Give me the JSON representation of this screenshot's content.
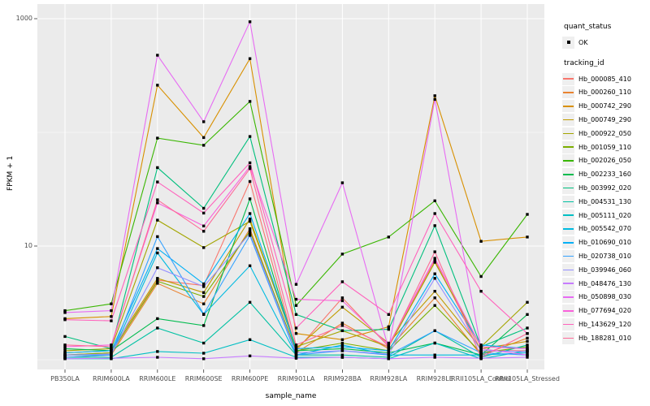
{
  "chart_data": {
    "type": "line",
    "title": "",
    "xlabel": "sample_name",
    "ylabel": "FPKM + 1",
    "y_scale": "log10",
    "y_ticks": [
      {
        "label": "1000",
        "value": 1000
      },
      {
        "label": "10",
        "value": 10
      }
    ],
    "y_minor_values": [
      1,
      100
    ],
    "panel_bg": "#ebebeb",
    "grid_color": "#ffffff",
    "point_color": "#000000",
    "categories": [
      "PB350LA",
      "RRIM600LA",
      "RRIM600LE",
      "RRIM600SE",
      "RRIM600PE",
      "RRIM901LA",
      "RRIM928BA",
      "RRIM928LA",
      "RRIM928LE",
      "RRII105LA_Control",
      "RRII105LA_Stressed"
    ],
    "series": [
      {
        "name": "Hb_000085_410",
        "color": "#F8766D",
        "values": [
          1.1,
          1.15,
          5.0,
          4.5,
          37,
          1.2,
          3.5,
          1.3,
          7.5,
          1.2,
          1.2
        ]
      },
      {
        "name": "Hb_000260_110",
        "color": "#EA8331",
        "values": [
          1.05,
          1.1,
          4.7,
          3.1,
          14.2,
          1.15,
          2.1,
          1.25,
          3.5,
          1.1,
          1.55
        ]
      },
      {
        "name": "Hb_000742_290",
        "color": "#D89000",
        "values": [
          2.3,
          2.4,
          260,
          90,
          445,
          1.7,
          1.5,
          1.95,
          210,
          11.0,
          12.0
        ]
      },
      {
        "name": "Hb_000749_290",
        "color": "#C09B00",
        "values": [
          1.15,
          1.2,
          5.2,
          3.9,
          17.3,
          1.25,
          2.9,
          1.4,
          4.0,
          1.25,
          1.45
        ]
      },
      {
        "name": "Hb_000922_050",
        "color": "#A3A500",
        "values": [
          1.2,
          1.25,
          16.9,
          9.7,
          16.5,
          1.3,
          1.8,
          1.3,
          7.2,
          1.3,
          3.2
        ]
      },
      {
        "name": "Hb_001059_110",
        "color": "#7CAE00",
        "values": [
          1.1,
          1.15,
          4.9,
          3.6,
          13.5,
          1.2,
          1.4,
          1.2,
          3.0,
          1.15,
          1.3
        ]
      },
      {
        "name": "Hb_002026_050",
        "color": "#39B600",
        "values": [
          2.7,
          3.1,
          89,
          77,
          187,
          3.0,
          8.5,
          12.0,
          25,
          5.4,
          19.0
        ]
      },
      {
        "name": "Hb_002233_160",
        "color": "#00BB4E",
        "values": [
          1.25,
          1.2,
          2.3,
          2.0,
          26,
          1.2,
          1.25,
          1.15,
          1.4,
          1.1,
          2.5
        ]
      },
      {
        "name": "Hb_003992_020",
        "color": "#00BF7D",
        "values": [
          1.6,
          1.25,
          49,
          21.5,
          92,
          2.5,
          1.8,
          1.85,
          15.1,
          1.3,
          1.9
        ]
      },
      {
        "name": "Hb_004531_130",
        "color": "#00C1A3",
        "values": [
          1.05,
          1.05,
          1.9,
          1.4,
          3.2,
          1.1,
          1.1,
          1.05,
          1.8,
          1.05,
          1.35
        ]
      },
      {
        "name": "Hb_005111_020",
        "color": "#00BFC4",
        "values": [
          1.02,
          1.02,
          1.18,
          1.14,
          1.5,
          1.05,
          1.05,
          1.02,
          1.4,
          1.02,
          1.2
        ]
      },
      {
        "name": "Hb_005542_070",
        "color": "#00BAE0",
        "values": [
          1.1,
          1.1,
          8.7,
          2.5,
          6.7,
          1.1,
          1.35,
          1.1,
          1.1,
          1.1,
          1.15
        ]
      },
      {
        "name": "Hb_010690_010",
        "color": "#00B0F6",
        "values": [
          1.15,
          1.2,
          9.5,
          4.65,
          19.3,
          1.25,
          1.3,
          1.2,
          5.7,
          1.35,
          1.25
        ]
      },
      {
        "name": "Hb_020738_010",
        "color": "#35A2FF",
        "values": [
          1.05,
          1.1,
          12.1,
          2.52,
          12.4,
          1.1,
          1.2,
          1.1,
          1.8,
          1.15,
          1.1
        ]
      },
      {
        "name": "Hb_039946_060",
        "color": "#9590FF",
        "values": [
          1.1,
          1.12,
          6.45,
          4.4,
          12.9,
          1.15,
          1.2,
          1.12,
          5.2,
          1.2,
          1.18
        ]
      },
      {
        "name": "Hb_048476_130",
        "color": "#C77CFF",
        "values": [
          1.02,
          1.03,
          1.05,
          1.02,
          1.08,
          1.03,
          1.05,
          1.02,
          1.05,
          1.03,
          1.05
        ]
      },
      {
        "name": "Hb_050898_030",
        "color": "#E76BF3",
        "values": [
          2.6,
          2.7,
          477,
          124,
          940,
          4.6,
          36,
          1.25,
          195,
          1.25,
          1.1
        ]
      },
      {
        "name": "Hb_077694_020",
        "color": "#FA62DB",
        "values": [
          1.3,
          1.35,
          24,
          15,
          50,
          3.4,
          3.3,
          1.35,
          7.8,
          1.3,
          1.25
        ]
      },
      {
        "name": "Hb_143629_120",
        "color": "#FF62BC",
        "values": [
          2.25,
          2.2,
          36.6,
          19.5,
          54,
          1.9,
          4.85,
          2.5,
          19.3,
          4.0,
          1.7
        ]
      },
      {
        "name": "Hb_188281_010",
        "color": "#FF6A98",
        "values": [
          1.35,
          1.3,
          25.5,
          13.5,
          48,
          1.35,
          2.0,
          1.3,
          8.9,
          1.05,
          1.7
        ]
      }
    ],
    "legend": {
      "quant_status": {
        "title": "quant_status",
        "items": [
          {
            "label": "OK"
          }
        ]
      },
      "tracking_id": {
        "title": "tracking_id"
      }
    }
  }
}
